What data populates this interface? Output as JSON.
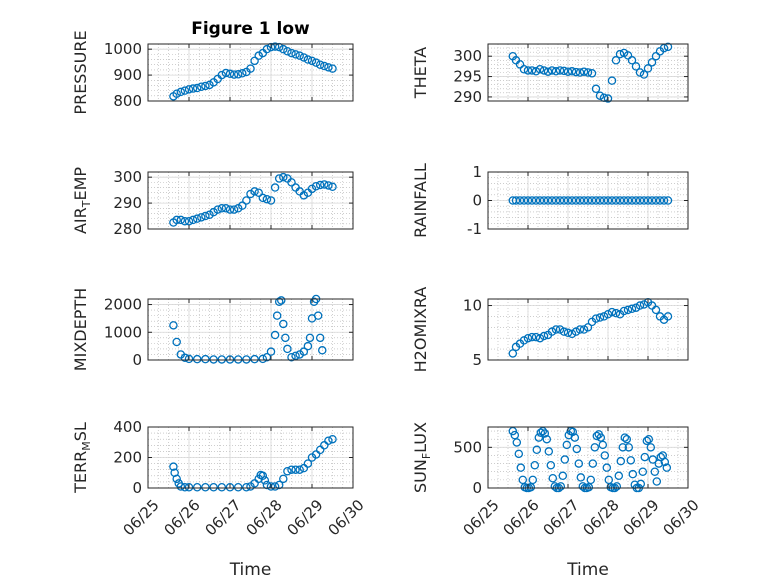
{
  "figure": {
    "title": "Figure 1 low",
    "marker_color": "#0072bd",
    "axis_color": "#262626",
    "grid_color": "#b0b0b0"
  },
  "chart_data": [
    {
      "type": "scatter",
      "name": "pressure",
      "title": "Figure 1 low",
      "ylabel": "PRESSURE",
      "ylim": [
        800,
        1020
      ],
      "yticks": [
        800,
        900,
        1000
      ],
      "xlim": [
        "06/25",
        "06/30"
      ],
      "xticks": [],
      "xticklabels": [],
      "xlabel": "",
      "grid": true,
      "x": [
        0.62,
        0.7,
        0.8,
        0.9,
        1.0,
        1.1,
        1.2,
        1.3,
        1.4,
        1.5,
        1.6,
        1.7,
        1.8,
        1.9,
        2.0,
        2.1,
        2.2,
        2.3,
        2.4,
        2.5,
        2.6,
        2.7,
        2.8,
        2.9,
        3.0,
        3.1,
        3.2,
        3.3,
        3.4,
        3.5,
        3.6,
        3.7,
        3.8,
        3.9,
        4.0,
        4.1,
        4.2,
        4.3,
        4.4,
        4.5
      ],
      "y": [
        818,
        828,
        835,
        840,
        845,
        848,
        850,
        855,
        858,
        862,
        872,
        885,
        900,
        908,
        905,
        902,
        903,
        907,
        912,
        925,
        955,
        975,
        985,
        1000,
        1008,
        1010,
        1008,
        1000,
        992,
        985,
        980,
        975,
        968,
        960,
        955,
        948,
        940,
        935,
        930,
        925
      ]
    },
    {
      "type": "scatter",
      "name": "theta",
      "title": "",
      "ylabel": "THETA",
      "ylim": [
        289,
        303
      ],
      "yticks": [
        290,
        295,
        300
      ],
      "xlim": [
        "06/25",
        "06/30"
      ],
      "xticks": [],
      "xticklabels": [],
      "xlabel": "",
      "grid": true,
      "x": [
        0.62,
        0.7,
        0.8,
        0.9,
        1.0,
        1.1,
        1.2,
        1.3,
        1.4,
        1.5,
        1.6,
        1.7,
        1.8,
        1.9,
        2.0,
        2.1,
        2.2,
        2.3,
        2.4,
        2.5,
        2.6,
        2.7,
        2.8,
        2.9,
        3.0,
        3.1,
        3.2,
        3.3,
        3.4,
        3.5,
        3.6,
        3.7,
        3.8,
        3.9,
        4.0,
        4.1,
        4.2,
        4.3,
        4.4,
        4.5
      ],
      "y": [
        300,
        299,
        298,
        296.8,
        296.5,
        296.5,
        296.3,
        296.8,
        296.5,
        296.2,
        296.5,
        296.3,
        296.5,
        296.4,
        296.2,
        296.3,
        296.1,
        296,
        296.2,
        296,
        295.8,
        292,
        290.3,
        289.8,
        289.6,
        294,
        299,
        300.5,
        300.8,
        300.2,
        299,
        297.5,
        296,
        295.5,
        297,
        298.5,
        300,
        301.2,
        302,
        302.3
      ]
    },
    {
      "type": "scatter",
      "name": "air-temp",
      "title": "",
      "ylabel": "AIR_TEMP",
      "ylabel_parts": [
        "AIR",
        "T",
        "EMP"
      ],
      "ylim": [
        280,
        302
      ],
      "yticks": [
        280,
        290,
        300
      ],
      "xlim": [
        "06/25",
        "06/30"
      ],
      "xticks": [],
      "xticklabels": [],
      "xlabel": "",
      "grid": true,
      "x": [
        0.62,
        0.7,
        0.8,
        0.9,
        1.0,
        1.1,
        1.2,
        1.3,
        1.4,
        1.5,
        1.6,
        1.7,
        1.8,
        1.9,
        2.0,
        2.1,
        2.2,
        2.3,
        2.4,
        2.5,
        2.6,
        2.7,
        2.8,
        2.9,
        3.0,
        3.1,
        3.2,
        3.3,
        3.4,
        3.5,
        3.6,
        3.7,
        3.8,
        3.9,
        4.0,
        4.1,
        4.2,
        4.3,
        4.4,
        4.5
      ],
      "y": [
        282.5,
        283.5,
        283.5,
        283,
        283,
        283.5,
        284,
        284.5,
        285,
        285.5,
        286.5,
        287.5,
        288,
        288,
        287.5,
        287.5,
        288,
        289,
        291,
        293.5,
        294.5,
        294,
        292,
        291.5,
        291,
        296,
        299.5,
        300,
        299.5,
        298,
        296,
        294.5,
        293,
        294,
        295.5,
        296.5,
        297,
        297.2,
        296.8,
        296.3
      ]
    },
    {
      "type": "scatter",
      "name": "rainfall",
      "title": "",
      "ylabel": "RAINFALL",
      "ylim": [
        -1,
        1
      ],
      "yticks": [
        -1,
        0,
        1
      ],
      "xlim": [
        "06/25",
        "06/30"
      ],
      "xticks": [],
      "xticklabels": [],
      "xlabel": "",
      "grid": true,
      "x": [
        0.62,
        0.7,
        0.8,
        0.9,
        1.0,
        1.1,
        1.2,
        1.3,
        1.4,
        1.5,
        1.6,
        1.7,
        1.8,
        1.9,
        2.0,
        2.1,
        2.2,
        2.3,
        2.4,
        2.5,
        2.6,
        2.7,
        2.8,
        2.9,
        3.0,
        3.1,
        3.2,
        3.3,
        3.4,
        3.5,
        3.6,
        3.7,
        3.8,
        3.9,
        4.0,
        4.1,
        4.2,
        4.3,
        4.4,
        4.5
      ],
      "y": [
        0,
        0,
        0,
        0,
        0,
        0,
        0,
        0,
        0,
        0,
        0,
        0,
        0,
        0,
        0,
        0,
        0,
        0,
        0,
        0,
        0,
        0,
        0,
        0,
        0,
        0,
        0,
        0,
        0,
        0,
        0,
        0,
        0,
        0,
        0,
        0,
        0,
        0,
        0,
        0
      ]
    },
    {
      "type": "scatter",
      "name": "mixdepth",
      "title": "",
      "ylabel": "MIXDEPTH",
      "ylim": [
        0,
        2200
      ],
      "yticks": [
        0,
        1000,
        2000
      ],
      "xlim": [
        "06/25",
        "06/30"
      ],
      "xticks": [],
      "xticklabels": [],
      "xlabel": "",
      "grid": true,
      "x": [
        0.62,
        0.7,
        0.8,
        0.9,
        1.0,
        1.2,
        1.4,
        1.6,
        1.8,
        2.0,
        2.2,
        2.4,
        2.6,
        2.8,
        2.9,
        3.0,
        3.1,
        3.15,
        3.2,
        3.25,
        3.3,
        3.35,
        3.4,
        3.5,
        3.6,
        3.7,
        3.8,
        3.9,
        3.95,
        4.0,
        4.05,
        4.1,
        4.15,
        4.2,
        4.25
      ],
      "y": [
        1250,
        650,
        200,
        80,
        40,
        30,
        30,
        20,
        20,
        20,
        20,
        20,
        30,
        40,
        100,
        300,
        900,
        1600,
        2100,
        2150,
        1300,
        800,
        400,
        100,
        150,
        200,
        300,
        500,
        800,
        1500,
        2100,
        2200,
        1600,
        800,
        350
      ]
    },
    {
      "type": "scatter",
      "name": "h2omixra",
      "title": "",
      "ylabel": "H2OMIXRA",
      "ylim": [
        5,
        10.6
      ],
      "yticks": [
        5,
        10
      ],
      "xlim": [
        "06/25",
        "06/30"
      ],
      "xticks": [],
      "xticklabels": [],
      "xlabel": "",
      "grid": true,
      "x": [
        0.62,
        0.7,
        0.8,
        0.9,
        1.0,
        1.1,
        1.2,
        1.3,
        1.4,
        1.5,
        1.6,
        1.7,
        1.8,
        1.9,
        2.0,
        2.1,
        2.2,
        2.3,
        2.4,
        2.5,
        2.6,
        2.7,
        2.8,
        2.9,
        3.0,
        3.1,
        3.2,
        3.3,
        3.4,
        3.5,
        3.6,
        3.7,
        3.8,
        3.9,
        4.0,
        4.1,
        4.2,
        4.3,
        4.4,
        4.5
      ],
      "y": [
        5.6,
        6.2,
        6.5,
        6.8,
        7.0,
        7.1,
        7.1,
        7.0,
        7.2,
        7.3,
        7.6,
        7.8,
        7.8,
        7.6,
        7.5,
        7.4,
        7.6,
        7.8,
        7.8,
        8.0,
        8.5,
        8.8,
        8.9,
        9.0,
        9.2,
        9.4,
        9.3,
        9.2,
        9.5,
        9.6,
        9.7,
        9.8,
        10.0,
        10.1,
        10.3,
        10.0,
        9.6,
        9.0,
        8.7,
        9.0
      ]
    },
    {
      "type": "scatter",
      "name": "terr-msl",
      "title": "",
      "ylabel": "TERR_MSL",
      "ylabel_parts": [
        "TERR",
        "M",
        "SL"
      ],
      "ylim": [
        0,
        400
      ],
      "yticks": [
        0,
        200,
        400
      ],
      "xlim": [
        "06/25",
        "06/30"
      ],
      "xticks": [
        0,
        1,
        2,
        3,
        4,
        5
      ],
      "xticklabels": [
        "06/25",
        "06/26",
        "06/27",
        "06/28",
        "06/29",
        "06/30"
      ],
      "xlabel": "Time",
      "grid": true,
      "x": [
        0.62,
        0.65,
        0.7,
        0.75,
        0.8,
        0.9,
        1.0,
        1.2,
        1.4,
        1.6,
        1.8,
        2.0,
        2.2,
        2.4,
        2.5,
        2.6,
        2.7,
        2.75,
        2.8,
        2.85,
        2.9,
        3.0,
        3.1,
        3.2,
        3.3,
        3.4,
        3.5,
        3.6,
        3.7,
        3.8,
        3.9,
        4.0,
        4.1,
        4.2,
        4.3,
        4.4,
        4.5
      ],
      "y": [
        140,
        100,
        60,
        30,
        10,
        5,
        5,
        5,
        5,
        5,
        5,
        5,
        5,
        5,
        10,
        30,
        60,
        85,
        80,
        50,
        20,
        10,
        10,
        20,
        60,
        110,
        120,
        120,
        120,
        130,
        160,
        200,
        220,
        250,
        280,
        310,
        320
      ]
    },
    {
      "type": "scatter",
      "name": "sun-flux",
      "title": "",
      "ylabel": "SUN_FLUX",
      "ylabel_parts": [
        "SUN",
        "F",
        "LUX"
      ],
      "ylim": [
        0,
        750
      ],
      "yticks": [
        0,
        500
      ],
      "xlim": [
        "06/25",
        "06/30"
      ],
      "xticks": [
        0,
        1,
        2,
        3,
        4,
        5
      ],
      "xticklabels": [
        "06/25",
        "06/26",
        "06/27",
        "06/28",
        "06/29",
        "06/30"
      ],
      "xlabel": "Time",
      "grid": true,
      "x": [
        0.62,
        0.67,
        0.72,
        0.77,
        0.82,
        0.87,
        0.92,
        0.97,
        1.02,
        1.07,
        1.12,
        1.17,
        1.22,
        1.27,
        1.32,
        1.37,
        1.42,
        1.47,
        1.52,
        1.57,
        1.62,
        1.67,
        1.72,
        1.77,
        1.82,
        1.87,
        1.92,
        1.97,
        2.02,
        2.07,
        2.12,
        2.17,
        2.22,
        2.27,
        2.32,
        2.37,
        2.42,
        2.47,
        2.52,
        2.57,
        2.62,
        2.67,
        2.72,
        2.77,
        2.82,
        2.87,
        2.92,
        2.97,
        3.02,
        3.07,
        3.12,
        3.17,
        3.22,
        3.27,
        3.32,
        3.37,
        3.42,
        3.47,
        3.52,
        3.57,
        3.62,
        3.67,
        3.72,
        3.77,
        3.82,
        3.87,
        3.92,
        3.97,
        4.02,
        4.07,
        4.12,
        4.17,
        4.22,
        4.27,
        4.32,
        4.37,
        4.42,
        4.47
      ],
      "y": [
        700,
        650,
        560,
        420,
        250,
        100,
        10,
        0,
        0,
        10,
        100,
        280,
        470,
        620,
        680,
        700,
        670,
        600,
        450,
        280,
        120,
        20,
        0,
        0,
        20,
        150,
        350,
        530,
        650,
        700,
        690,
        620,
        480,
        300,
        130,
        20,
        0,
        0,
        10,
        100,
        300,
        500,
        640,
        660,
        620,
        530,
        400,
        250,
        100,
        10,
        0,
        0,
        20,
        150,
        330,
        500,
        620,
        600,
        500,
        340,
        170,
        40,
        0,
        0,
        50,
        200,
        380,
        580,
        600,
        500,
        350,
        200,
        80,
        300,
        380,
        400,
        320,
        250
      ]
    }
  ]
}
